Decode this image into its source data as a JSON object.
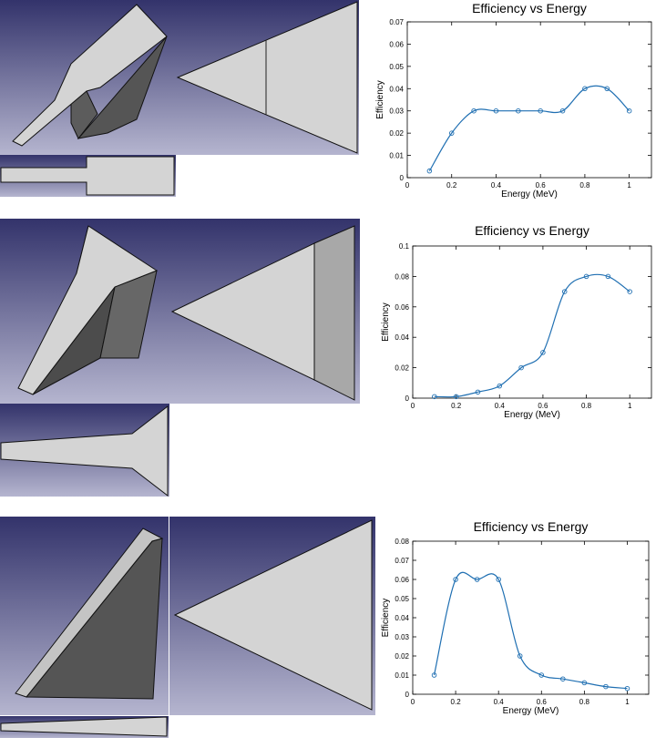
{
  "chart_data": [
    {
      "type": "line",
      "title": "Efficiency vs Energy",
      "xlabel": "Energy (MeV)",
      "ylabel": "Efficiency",
      "xlim": [
        0,
        1.1
      ],
      "ylim": [
        0,
        0.07
      ],
      "xticks": [
        "0",
        "0.2",
        "0.4",
        "0.6",
        "0.8",
        "1"
      ],
      "yticks": [
        "0",
        "0.01",
        "0.02",
        "0.03",
        "0.04",
        "0.05",
        "0.06",
        "0.07"
      ],
      "x": [
        0.1,
        0.2,
        0.3,
        0.4,
        0.5,
        0.6,
        0.7,
        0.8,
        0.9,
        1.0
      ],
      "y": [
        0.003,
        0.02,
        0.03,
        0.03,
        0.03,
        0.03,
        0.03,
        0.04,
        0.04,
        0.03
      ],
      "grid": false,
      "marker": "circle",
      "line_color": "#1f6fb2"
    },
    {
      "type": "line",
      "title": "Efficiency vs Energy",
      "xlabel": "Energy (MeV)",
      "ylabel": "Efficiency",
      "xlim": [
        0,
        1.1
      ],
      "ylim": [
        0,
        0.1
      ],
      "xticks": [
        "0",
        "0.2",
        "0.4",
        "0.6",
        "0.8",
        "1"
      ],
      "yticks": [
        "0",
        "0.02",
        "0.04",
        "0.06",
        "0.08",
        "0.1"
      ],
      "x": [
        0.1,
        0.2,
        0.3,
        0.4,
        0.5,
        0.6,
        0.7,
        0.8,
        0.9,
        1.0
      ],
      "y": [
        0.001,
        0.001,
        0.004,
        0.008,
        0.02,
        0.03,
        0.07,
        0.08,
        0.08,
        0.07
      ],
      "grid": false,
      "marker": "circle",
      "line_color": "#1f6fb2"
    },
    {
      "type": "line",
      "title": "Efficiency vs Energy",
      "xlabel": "Energy (MeV)",
      "ylabel": "Efficiency",
      "xlim": [
        0,
        1.1
      ],
      "ylim": [
        0,
        0.08
      ],
      "xticks": [
        "0",
        "0.2",
        "0.4",
        "0.6",
        "0.8",
        "1"
      ],
      "yticks": [
        "0",
        "0.01",
        "0.02",
        "0.03",
        "0.04",
        "0.05",
        "0.06",
        "0.07",
        "0.08"
      ],
      "x": [
        0.1,
        0.2,
        0.3,
        0.4,
        0.5,
        0.6,
        0.7,
        0.8,
        0.9,
        1.0
      ],
      "y": [
        0.01,
        0.06,
        0.06,
        0.06,
        0.02,
        0.01,
        0.008,
        0.006,
        0.004,
        0.003
      ],
      "grid": false,
      "marker": "circle",
      "line_color": "#1f6fb2"
    }
  ],
  "colors": {
    "viewport_top": "#3c3c74",
    "viewport_bottom": "#b4b4cc",
    "face_light": "#d2d2d2",
    "face_mid": "#a6a6a6",
    "face_dark": "#4a4a4a",
    "edge": "#1a1a1a"
  }
}
